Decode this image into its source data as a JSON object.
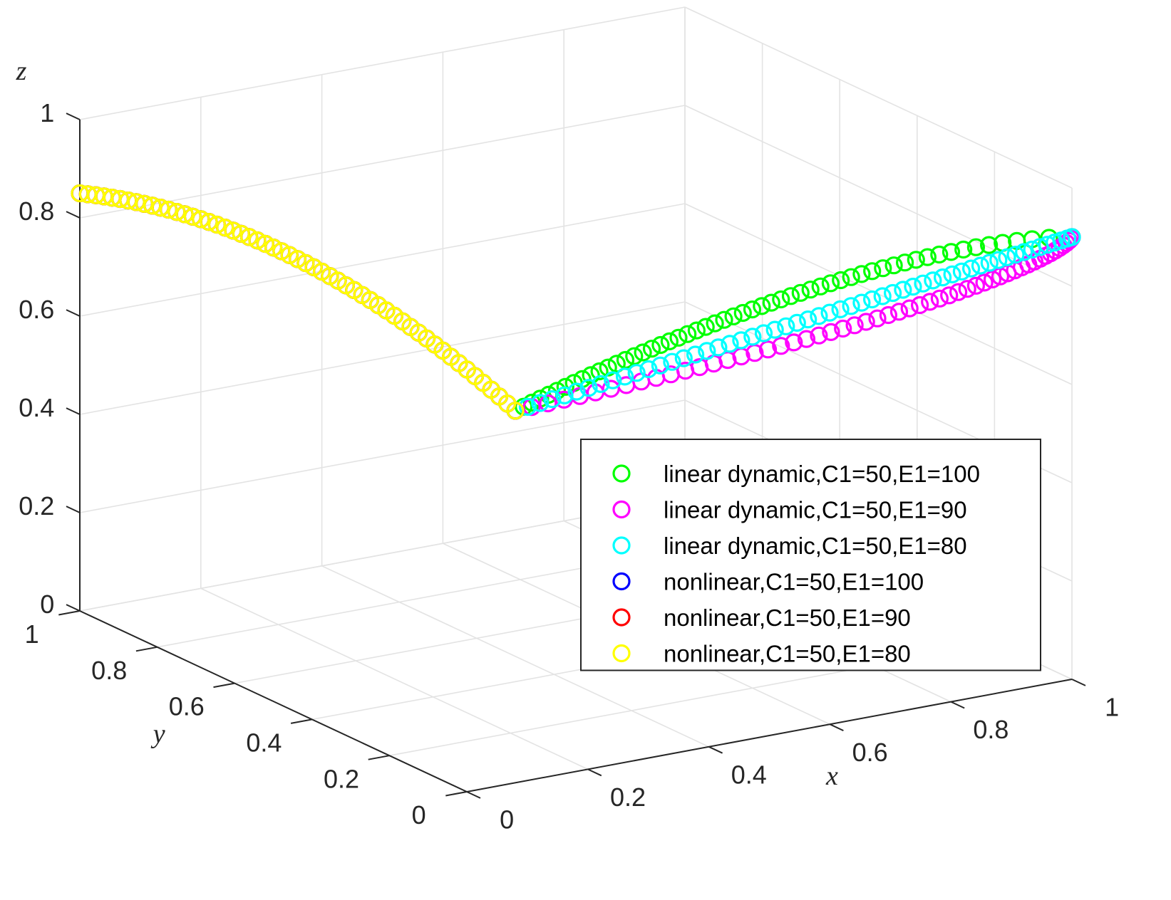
{
  "chart_data": {
    "type": "scatter3d",
    "title": "",
    "xlabel": "x",
    "ylabel": "y",
    "zlabel": "z",
    "xlim": [
      0,
      1
    ],
    "ylim": [
      0,
      1
    ],
    "zlim": [
      0,
      1
    ],
    "grid": true,
    "legend_position": "right",
    "ticks": {
      "x": [
        {
          "v": 0,
          "label": "0"
        },
        {
          "v": 0.2,
          "label": "0.2"
        },
        {
          "v": 0.4,
          "label": "0.4"
        },
        {
          "v": 0.6,
          "label": "0.6"
        },
        {
          "v": 0.8,
          "label": "0.8"
        },
        {
          "v": 1,
          "label": "1"
        }
      ],
      "y": [
        {
          "v": 0,
          "label": "0"
        },
        {
          "v": 0.2,
          "label": "0.2"
        },
        {
          "v": 0.4,
          "label": "0.4"
        },
        {
          "v": 0.6,
          "label": "0.6"
        },
        {
          "v": 0.8,
          "label": "0.8"
        },
        {
          "v": 1,
          "label": "1"
        }
      ],
      "z": [
        {
          "v": 0,
          "label": "0"
        },
        {
          "v": 0.2,
          "label": "0.2"
        },
        {
          "v": 0.4,
          "label": "0.4"
        },
        {
          "v": 0.6,
          "label": "0.6"
        },
        {
          "v": 0.8,
          "label": "0.8"
        },
        {
          "v": 1,
          "label": "1"
        }
      ]
    },
    "series": [
      {
        "name": "linear dynamic,C1=50,E1=100",
        "color": "#00ff00",
        "x": 0.4,
        "y": 0.5,
        "z": 0.5,
        "end": [
          1.0,
          0.0,
          0.9
        ],
        "p": 0.8,
        "q": 1.2,
        "n": 55
      },
      {
        "name": "linear dynamic,C1=50,E1=90",
        "color": "#ff00ff",
        "x": 0.4,
        "y": 0.5,
        "z": 0.5,
        "end": [
          1.0,
          0.0,
          0.9
        ],
        "p": 1.6,
        "q": 1.2,
        "n": 55
      },
      {
        "name": "linear dynamic,C1=50,E1=80",
        "color": "#00ffff",
        "x": 0.4,
        "y": 0.5,
        "z": 0.5,
        "end": [
          1.0,
          0.0,
          0.9
        ],
        "p": 1.2,
        "q": 1.2,
        "n": 55
      },
      {
        "name": "nonlinear,C1=50,E1=100",
        "color": "#0000ff",
        "x": 0.4,
        "y": 0.5,
        "z": 0.5,
        "end": [
          0.0,
          1.0,
          0.85
        ],
        "p": 1.0,
        "q": 2.0,
        "n": 55
      },
      {
        "name": "nonlinear,C1=50,E1=90",
        "color": "#ff0000",
        "x": 0.4,
        "y": 0.5,
        "z": 0.5,
        "end": [
          0.0,
          1.0,
          0.85
        ],
        "p": 1.0,
        "q": 2.0,
        "n": 55
      },
      {
        "name": "nonlinear,C1=50,E1=80",
        "color": "#ffff00",
        "x": 0.4,
        "y": 0.5,
        "z": 0.5,
        "end": [
          0.0,
          1.0,
          0.85
        ],
        "p": 1.0,
        "q": 2.0,
        "n": 55
      }
    ]
  }
}
